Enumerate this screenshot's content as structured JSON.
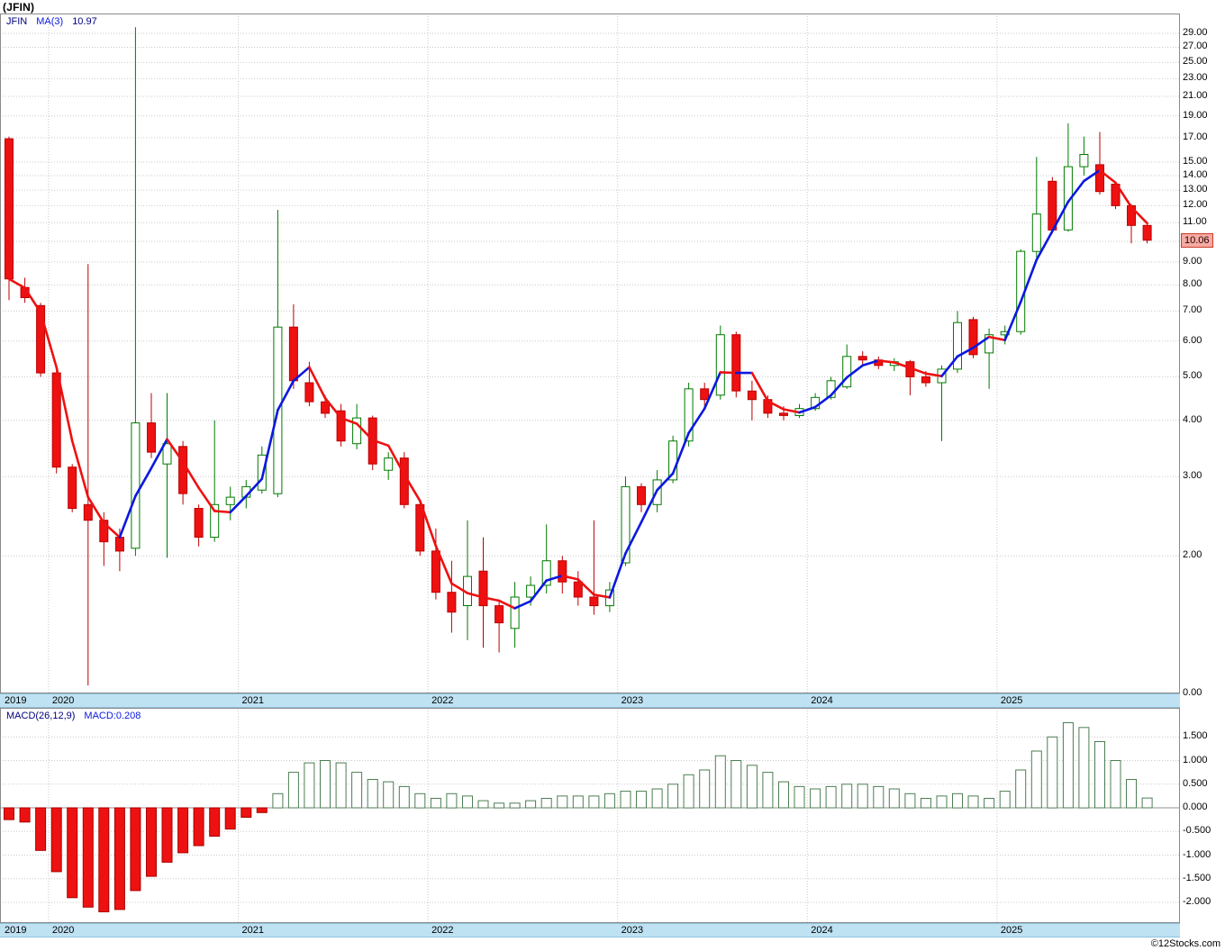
{
  "header": {
    "title": "(JFIN)"
  },
  "footer": {
    "copyright": "©12Stocks.com"
  },
  "price_panel": {
    "legend": {
      "symbol": "JFIN",
      "ma_label": "MA(3)",
      "ma_value": "10.97"
    },
    "last_price_label": "10.06"
  },
  "macd_panel": {
    "legend": {
      "label": "MACD(26,12,9)",
      "value": "MACD:0.208"
    }
  },
  "x_axis": {
    "years": [
      "2019",
      "2020",
      "2021",
      "2022",
      "2023",
      "2024",
      "2025"
    ]
  },
  "colors": {
    "candle_up": "#007a00",
    "candle_down": "#ee1111",
    "candle_down_edge": "#bb0000",
    "ma_up": "#0a18e0",
    "ma_down": "#ee1111",
    "macd_neg": "#ee1111",
    "macd_neg_edge": "#aa0000",
    "macd_pos_edge": "#4d7d52",
    "band_bg": "#bfe2f3",
    "tag_bg": "#f5aaa2",
    "tag_border": "#cf3a28"
  },
  "chart_data": [
    {
      "type": "candlestick",
      "title": "JFIN monthly price with MA(3) overlay",
      "interval": "monthly",
      "yscale": "log",
      "ylim": [
        1.0,
        30
      ],
      "yticks": [
        29,
        27,
        25,
        23,
        21,
        19,
        17,
        15,
        14,
        13,
        12,
        11,
        10,
        9,
        8,
        7,
        6,
        5,
        4,
        3,
        2,
        0
      ],
      "legend_position": "top-left",
      "grid": true,
      "last_price": 10.06,
      "overlays": [
        {
          "name": "MA(3)",
          "derivation": "3-period moving average of close",
          "last_value": 10.97
        }
      ],
      "x": [
        "2019-10",
        "2019-11",
        "2019-12",
        "2020-01",
        "2020-02",
        "2020-03",
        "2020-04",
        "2020-05",
        "2020-06",
        "2020-07",
        "2020-08",
        "2020-09",
        "2020-10",
        "2020-11",
        "2020-12",
        "2021-01",
        "2021-02",
        "2021-03",
        "2021-04",
        "2021-05",
        "2021-06",
        "2021-07",
        "2021-08",
        "2021-09",
        "2021-10",
        "2021-11",
        "2021-12",
        "2022-01",
        "2022-02",
        "2022-03",
        "2022-04",
        "2022-05",
        "2022-06",
        "2022-07",
        "2022-08",
        "2022-09",
        "2022-10",
        "2022-11",
        "2022-12",
        "2023-01",
        "2023-02",
        "2023-03",
        "2023-04",
        "2023-05",
        "2023-06",
        "2023-07",
        "2023-08",
        "2023-09",
        "2023-10",
        "2023-11",
        "2023-12",
        "2024-01",
        "2024-02",
        "2024-03",
        "2024-04",
        "2024-05",
        "2024-06",
        "2024-07",
        "2024-08",
        "2024-09",
        "2024-10",
        "2024-11",
        "2024-12",
        "2025-01",
        "2025-02",
        "2025-03",
        "2025-04",
        "2025-05",
        "2025-06",
        "2025-07",
        "2025-08",
        "2025-09",
        "2025-10"
      ],
      "ohlc": [
        [
          16.9,
          17.1,
          7.4,
          8.25
        ],
        [
          7.9,
          8.3,
          7.3,
          7.5
        ],
        [
          7.2,
          7.3,
          5.0,
          5.1
        ],
        [
          5.1,
          5.15,
          3.05,
          3.15
        ],
        [
          3.15,
          3.2,
          2.5,
          2.55
        ],
        [
          2.6,
          8.9,
          1.03,
          2.4
        ],
        [
          2.4,
          2.5,
          1.9,
          2.15
        ],
        [
          2.2,
          2.3,
          1.85,
          2.05
        ],
        [
          2.08,
          29.9,
          2.0,
          3.95
        ],
        [
          3.95,
          4.6,
          3.3,
          3.4
        ],
        [
          3.2,
          4.6,
          1.98,
          3.55
        ],
        [
          3.5,
          3.6,
          2.6,
          2.75
        ],
        [
          2.55,
          2.6,
          2.1,
          2.2
        ],
        [
          2.2,
          4.0,
          2.15,
          2.6
        ],
        [
          2.6,
          2.85,
          2.4,
          2.7
        ],
        [
          2.7,
          2.95,
          2.55,
          2.85
        ],
        [
          2.8,
          3.5,
          2.75,
          3.35
        ],
        [
          2.75,
          11.75,
          2.7,
          6.45
        ],
        [
          6.45,
          7.25,
          4.7,
          4.9
        ],
        [
          4.85,
          5.4,
          4.3,
          4.4
        ],
        [
          4.4,
          4.55,
          4.05,
          4.15
        ],
        [
          4.2,
          4.35,
          3.5,
          3.6
        ],
        [
          3.55,
          4.35,
          3.45,
          4.05
        ],
        [
          4.05,
          4.1,
          3.1,
          3.2
        ],
        [
          3.1,
          3.4,
          2.95,
          3.3
        ],
        [
          3.3,
          3.4,
          2.55,
          2.6
        ],
        [
          2.6,
          2.65,
          2.0,
          2.05
        ],
        [
          2.05,
          2.3,
          1.6,
          1.66
        ],
        [
          1.66,
          1.95,
          1.35,
          1.5
        ],
        [
          1.55,
          2.4,
          1.3,
          1.8
        ],
        [
          1.85,
          2.2,
          1.25,
          1.55
        ],
        [
          1.55,
          1.6,
          1.22,
          1.42
        ],
        [
          1.38,
          1.75,
          1.25,
          1.62
        ],
        [
          1.62,
          1.8,
          1.55,
          1.72
        ],
        [
          1.72,
          2.35,
          1.65,
          1.95
        ],
        [
          1.95,
          2.0,
          1.65,
          1.75
        ],
        [
          1.75,
          1.85,
          1.55,
          1.62
        ],
        [
          1.62,
          2.4,
          1.48,
          1.55
        ],
        [
          1.55,
          1.75,
          1.5,
          1.68
        ],
        [
          1.93,
          3.0,
          1.9,
          2.85
        ],
        [
          2.85,
          2.9,
          2.5,
          2.6
        ],
        [
          2.6,
          3.1,
          2.5,
          2.95
        ],
        [
          2.95,
          3.7,
          2.9,
          3.6
        ],
        [
          3.6,
          4.85,
          3.5,
          4.7
        ],
        [
          4.7,
          4.85,
          4.3,
          4.45
        ],
        [
          4.55,
          6.5,
          4.45,
          6.2
        ],
        [
          6.2,
          6.3,
          4.5,
          4.65
        ],
        [
          4.65,
          4.9,
          4.0,
          4.45
        ],
        [
          4.45,
          4.55,
          4.05,
          4.15
        ],
        [
          4.15,
          4.3,
          4.0,
          4.1
        ],
        [
          4.1,
          4.35,
          4.05,
          4.25
        ],
        [
          4.25,
          4.6,
          4.2,
          4.5
        ],
        [
          4.5,
          5.0,
          4.45,
          4.9
        ],
        [
          4.75,
          5.9,
          4.7,
          5.55
        ],
        [
          5.55,
          5.7,
          5.3,
          5.45
        ],
        [
          5.45,
          5.55,
          5.2,
          5.3
        ],
        [
          5.3,
          5.5,
          5.15,
          5.4
        ],
        [
          5.4,
          5.45,
          4.55,
          5.0
        ],
        [
          5.0,
          5.15,
          4.75,
          4.85
        ],
        [
          4.85,
          5.3,
          3.6,
          5.2
        ],
        [
          5.2,
          7.0,
          5.1,
          6.6
        ],
        [
          6.7,
          6.8,
          5.5,
          5.6
        ],
        [
          5.65,
          6.4,
          4.7,
          6.2
        ],
        [
          6.2,
          6.5,
          5.9,
          6.3
        ],
        [
          6.3,
          9.6,
          6.2,
          9.5
        ],
        [
          9.5,
          15.4,
          9.2,
          11.5
        ],
        [
          13.6,
          13.9,
          10.4,
          10.6
        ],
        [
          10.6,
          18.3,
          10.5,
          14.65
        ],
        [
          14.65,
          17.1,
          14.0,
          15.6
        ],
        [
          14.8,
          17.5,
          12.7,
          12.9
        ],
        [
          13.4,
          13.5,
          11.8,
          12.0
        ],
        [
          12.0,
          12.1,
          9.9,
          10.85
        ],
        [
          10.85,
          11.0,
          9.9,
          10.06
        ]
      ]
    },
    {
      "type": "bar",
      "title": "MACD(26,12,9) histogram",
      "ylim": [
        -2.4,
        1.9
      ],
      "yticks": [
        1.5,
        1.0,
        0.5,
        0.0,
        -0.5,
        -1.0,
        -1.5,
        -2.0
      ],
      "grid": true,
      "last_value": 0.208,
      "x": [
        "2019-10",
        "2019-11",
        "2019-12",
        "2020-01",
        "2020-02",
        "2020-03",
        "2020-04",
        "2020-05",
        "2020-06",
        "2020-07",
        "2020-08",
        "2020-09",
        "2020-10",
        "2020-11",
        "2020-12",
        "2021-01",
        "2021-02",
        "2021-03",
        "2021-04",
        "2021-05",
        "2021-06",
        "2021-07",
        "2021-08",
        "2021-09",
        "2021-10",
        "2021-11",
        "2021-12",
        "2022-01",
        "2022-02",
        "2022-03",
        "2022-04",
        "2022-05",
        "2022-06",
        "2022-07",
        "2022-08",
        "2022-09",
        "2022-10",
        "2022-11",
        "2022-12",
        "2023-01",
        "2023-02",
        "2023-03",
        "2023-04",
        "2023-05",
        "2023-06",
        "2023-07",
        "2023-08",
        "2023-09",
        "2023-10",
        "2023-11",
        "2023-12",
        "2024-01",
        "2024-02",
        "2024-03",
        "2024-04",
        "2024-05",
        "2024-06",
        "2024-07",
        "2024-08",
        "2024-09",
        "2024-10",
        "2024-11",
        "2024-12",
        "2025-01",
        "2025-02",
        "2025-03",
        "2025-04",
        "2025-05",
        "2025-06",
        "2025-07",
        "2025-08",
        "2025-09",
        "2025-10"
      ],
      "values": [
        -0.25,
        -0.3,
        -0.9,
        -1.35,
        -1.9,
        -2.1,
        -2.2,
        -2.15,
        -1.75,
        -1.45,
        -1.15,
        -0.95,
        -0.8,
        -0.6,
        -0.45,
        -0.2,
        -0.1,
        0.3,
        0.75,
        0.95,
        1.0,
        0.95,
        0.75,
        0.6,
        0.55,
        0.45,
        0.3,
        0.2,
        0.3,
        0.25,
        0.15,
        0.1,
        0.1,
        0.15,
        0.2,
        0.25,
        0.25,
        0.25,
        0.3,
        0.35,
        0.35,
        0.4,
        0.5,
        0.7,
        0.8,
        1.1,
        1.0,
        0.9,
        0.75,
        0.55,
        0.45,
        0.4,
        0.45,
        0.5,
        0.5,
        0.45,
        0.4,
        0.3,
        0.2,
        0.25,
        0.3,
        0.25,
        0.2,
        0.35,
        0.8,
        1.2,
        1.5,
        1.8,
        1.7,
        1.4,
        1.0,
        0.6,
        0.208
      ]
    }
  ]
}
